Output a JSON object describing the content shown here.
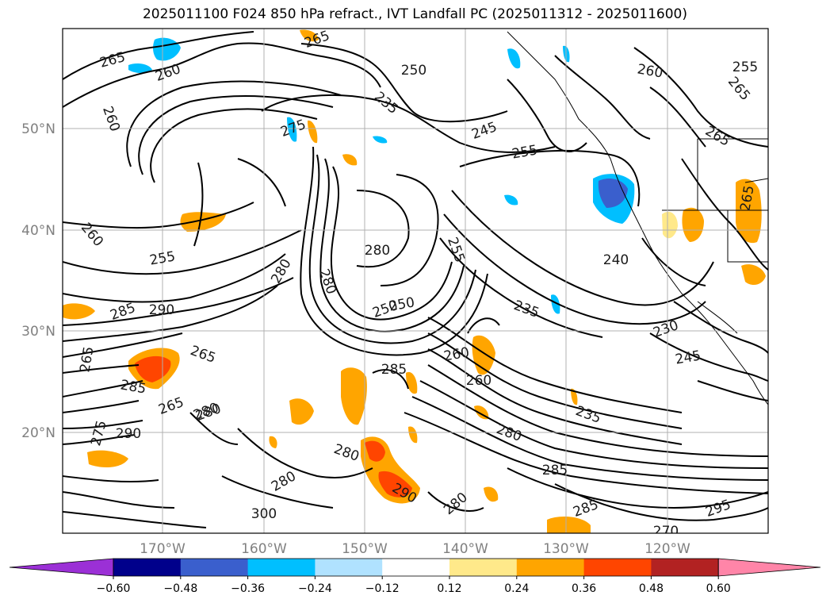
{
  "title": "2025011100 F024 850 hPa refract., IVT Landfall PC (2025011312 - 2025011600)",
  "lat_labels": [
    "50°N",
    "40°N",
    "30°N",
    "20°N"
  ],
  "lon_labels": [
    "170°W",
    "160°W",
    "150°W",
    "140°W",
    "130°W",
    "120°W"
  ],
  "colorbar": {
    "colors": [
      "#9b30d6",
      "#00008b",
      "#3a5fcd",
      "#00bfff",
      "#b0e2ff",
      "#ffffff",
      "#ffe98a",
      "#ffa500",
      "#ff4500",
      "#b22222",
      "#ff85a8"
    ],
    "tick_labels": [
      "−0.60",
      "−0.48",
      "−0.36",
      "−0.24",
      "−0.12",
      "0.12",
      "0.24",
      "0.36",
      "0.48",
      "0.60"
    ]
  },
  "contour_labels": [
    "265",
    "260",
    "265",
    "250",
    "235",
    "245",
    "255",
    "260",
    "255",
    "265",
    "265",
    "275",
    "260",
    "265",
    "255",
    "280",
    "280",
    "280",
    "260",
    "265",
    "285",
    "290",
    "250",
    "255",
    "240",
    "235",
    "230",
    "245",
    "265",
    "280",
    "290",
    "285",
    "260",
    "260",
    "235",
    "280",
    "285",
    "280",
    "280",
    "290",
    "280",
    "285",
    "285",
    "300",
    "295",
    "270",
    "275",
    "265",
    "280",
    "250"
  ]
}
